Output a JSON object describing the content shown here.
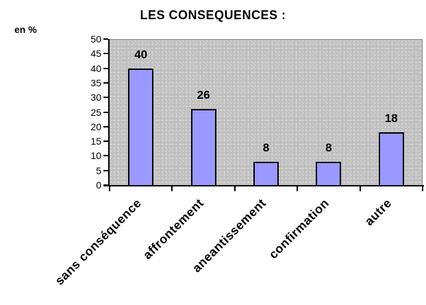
{
  "chart_data": {
    "type": "bar",
    "title": "LES CONSEQUENCES :",
    "categories": [
      "sans conséquence",
      "affrontement",
      "aneantissement",
      "confirmation",
      "autre"
    ],
    "values": [
      40,
      26,
      8,
      8,
      18
    ],
    "data_labels": [
      "40",
      "26",
      "8",
      "8",
      "18"
    ],
    "xlabel": "",
    "ylabel": "en %",
    "ylim": [
      0,
      50
    ],
    "ytick_step": 5,
    "grid": false,
    "legend": "none",
    "bar_color": "#9999ff",
    "bar_border_color": "#000000",
    "plot_bg_color": "#c0c0c0",
    "axis_color": "#000000"
  }
}
